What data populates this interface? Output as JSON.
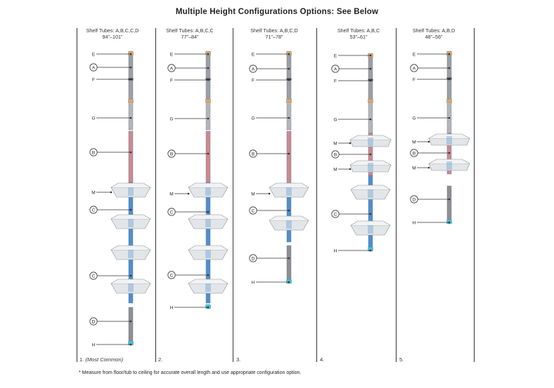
{
  "title": "Multiple Height Configurations Options: See Below",
  "footnote": "* Measure from floor/tub to ceiling for accurate overall length and use appropriate configuration option.",
  "columns": [
    {
      "number": "1.",
      "note": "(Most Common)",
      "tubes": "Shelf Tubes: A,B,C,C,D",
      "range": "94\"–101\""
    },
    {
      "number": "2.",
      "note": "",
      "tubes": "Shelf Tubes: A,B,C,C",
      "range": "77\"–84\""
    },
    {
      "number": "3.",
      "note": "",
      "tubes": "Shelf Tubes: A,B,C,D",
      "range": "71\"–78\""
    },
    {
      "number": "4.",
      "note": "",
      "tubes": "Shelf Tubes: A,B,C",
      "range": "53\"–61\""
    },
    {
      "number": "5.",
      "note": "",
      "tubes": "Shelf Tubes: A,B,D",
      "range": "48\"–56\""
    }
  ],
  "part_labels": {
    "A": "A",
    "B": "B",
    "C": "C",
    "D": "D",
    "E": "E",
    "F": "F",
    "G": "G",
    "H": "H",
    "M": "M"
  },
  "colors": {
    "steel": "#9aa0a5",
    "pink": "#c98a94",
    "blue": "#4f8fcf",
    "gray_tube": "#8c9094",
    "cap": "#d9a673",
    "cyan": "#3ec3dd",
    "tray": "#e3e6e8"
  }
}
